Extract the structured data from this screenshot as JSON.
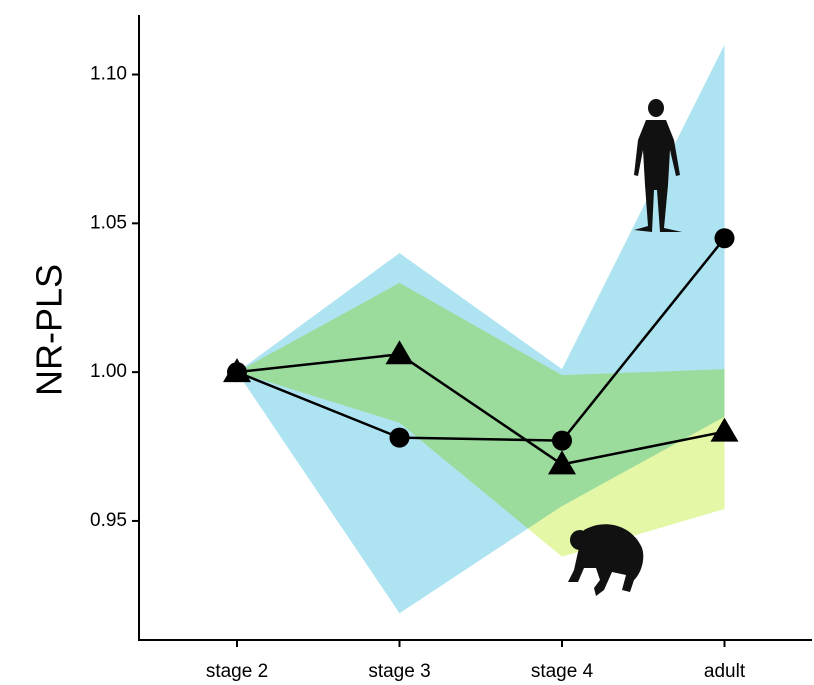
{
  "chart_data": {
    "type": "line",
    "y_label": "NR-PLS",
    "categories": [
      "stage 2",
      "stage 3",
      "stage 4",
      "adult"
    ],
    "ylim": [
      0.91,
      1.12
    ],
    "yticks": [
      {
        "value": 0.95,
        "label": "0.95"
      },
      {
        "value": 1.0,
        "label": "1.00"
      },
      {
        "value": 1.05,
        "label": "1.05"
      },
      {
        "value": 1.1,
        "label": "1.10"
      }
    ],
    "series": [
      {
        "color": "#000000",
        "marker": "circle",
        "values": [
          1.0,
          0.978,
          0.977,
          1.045
        ],
        "band_color": "#aee3f1",
        "band_lower": [
          1.0,
          0.919,
          0.955,
          0.985
        ],
        "band_upper": [
          1.0,
          1.04,
          1.001,
          1.11
        ]
      },
      {
        "color": "#000000",
        "marker": "triangle",
        "values": [
          1.0,
          1.006,
          0.969,
          0.98
        ],
        "band_color": "#e3f7a6",
        "band_lower": [
          1.0,
          0.983,
          0.938,
          0.954
        ],
        "band_upper": [
          1.0,
          1.03,
          0.999,
          1.001
        ]
      }
    ]
  }
}
